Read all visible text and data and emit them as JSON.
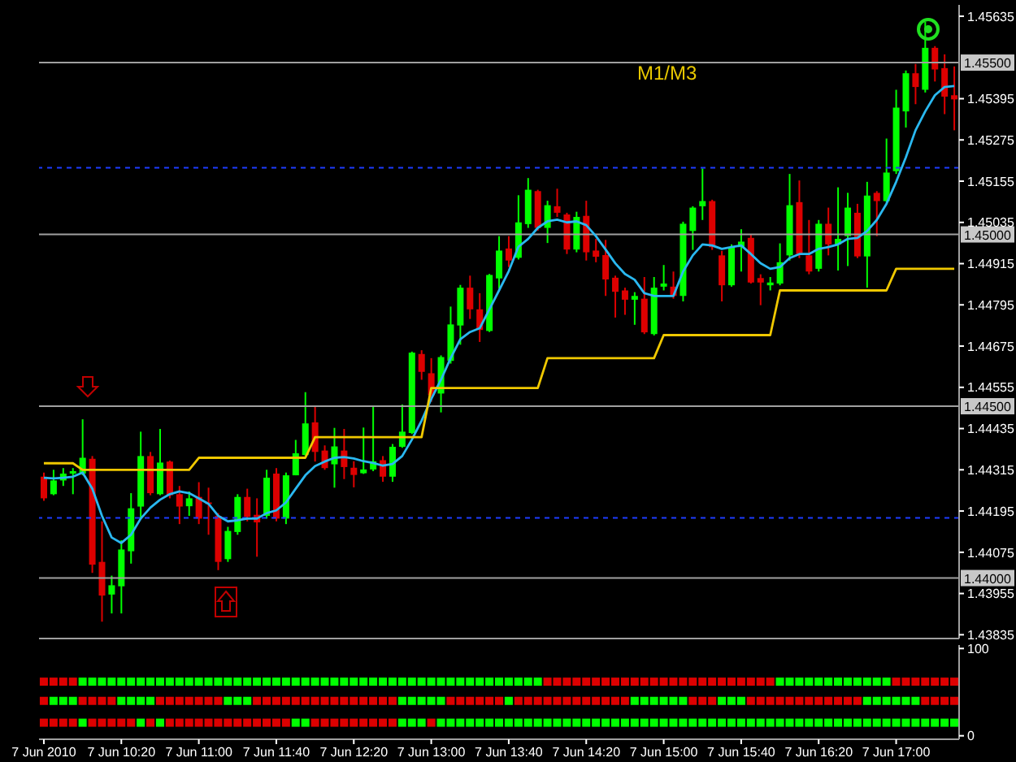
{
  "chart_data": [
    {
      "type": "candlestick",
      "tick_labels": "y",
      "annotations": [
        "M1/M3"
      ],
      "ylim": [
        1.43824,
        1.45668
      ],
      "yticks": [
        1.43835,
        1.43955,
        1.44075,
        1.44195,
        1.44315,
        1.44435,
        1.44555,
        1.44675,
        1.44795,
        1.44915,
        1.45035,
        1.45155,
        1.45275,
        1.45395,
        1.45635
      ],
      "ref_lines": [
        {
          "axis": "y",
          "value": 1.455,
          "label": "1.45500",
          "color": "#a0a0a0"
        },
        {
          "axis": "y",
          "value": 1.45,
          "label": "1.45000",
          "color": "#a0a0a0"
        },
        {
          "axis": "y",
          "value": 1.445,
          "label": "1.44500",
          "color": "#a0a0a0"
        },
        {
          "axis": "y",
          "value": 1.44,
          "label": "1.44000",
          "color": "#a0a0a0"
        },
        {
          "axis": "y",
          "value": 1.45194,
          "color": "#1e3cff",
          "line_style": "dashed"
        },
        {
          "axis": "y",
          "value": 1.44175,
          "color": "#1e3cff",
          "line_style": "dashed"
        }
      ],
      "ohlc": [
        [
          1.44295,
          1.44307,
          1.44225,
          1.44232
        ],
        [
          1.44244,
          1.44315,
          1.44241,
          1.44284
        ],
        [
          1.44284,
          1.4432,
          1.44268,
          1.44304
        ],
        [
          1.44304,
          1.4432,
          1.44244,
          1.44311
        ],
        [
          1.44304,
          1.44462,
          1.44299,
          1.4435
        ],
        [
          1.44347,
          1.44355,
          1.44015,
          1.44039
        ],
        [
          1.44047,
          1.44165,
          1.43873,
          1.43949
        ],
        [
          1.43952,
          1.44007,
          1.43897,
          1.43979
        ],
        [
          1.43976,
          1.4411,
          1.43897,
          1.44083
        ],
        [
          1.44078,
          1.44247,
          1.44042,
          1.44203
        ],
        [
          1.44208,
          1.44426,
          1.44173,
          1.44355
        ],
        [
          1.44355,
          1.44367,
          1.44241,
          1.44247
        ],
        [
          1.44244,
          1.44434,
          1.44241,
          1.44336
        ],
        [
          1.44339,
          1.44342,
          1.44232,
          1.44241
        ],
        [
          1.44244,
          1.44268,
          1.44157,
          1.44208
        ],
        [
          1.44209,
          1.44252,
          1.44181,
          1.44232
        ],
        [
          1.44236,
          1.44279,
          1.44157,
          1.44173
        ],
        [
          1.4422,
          1.44263,
          1.44126,
          1.44216
        ],
        [
          1.44181,
          1.44189,
          1.44023,
          1.44047
        ],
        [
          1.44055,
          1.44149,
          1.44047,
          1.44137
        ],
        [
          1.44134,
          1.44244,
          1.44126,
          1.44236
        ],
        [
          1.44236,
          1.4426,
          1.44165,
          1.44178
        ],
        [
          1.44184,
          1.44232,
          1.44062,
          1.44162
        ],
        [
          1.44181,
          1.44315,
          1.44173,
          1.44292
        ],
        [
          1.44304,
          1.4432,
          1.44165,
          1.44173
        ],
        [
          1.44173,
          1.44307,
          1.44157,
          1.44299
        ],
        [
          1.44299,
          1.44402,
          1.44299,
          1.44363
        ],
        [
          1.44358,
          1.44541,
          1.44355,
          1.4445
        ],
        [
          1.44453,
          1.445,
          1.44339,
          1.44367
        ],
        [
          1.44371,
          1.44386,
          1.44315,
          1.4432
        ],
        [
          1.44331,
          1.44437,
          1.44263,
          1.44383
        ],
        [
          1.44371,
          1.44434,
          1.44288,
          1.44323
        ],
        [
          1.44321,
          1.4434,
          1.44264,
          1.443
        ],
        [
          1.44305,
          1.44438,
          1.44303,
          1.44316
        ],
        [
          1.44316,
          1.44498,
          1.44311,
          1.4434
        ],
        [
          1.44343,
          1.44355,
          1.4428,
          1.44295
        ],
        [
          1.44295,
          1.4439,
          1.4428,
          1.44382
        ],
        [
          1.44382,
          1.44505,
          1.44379,
          1.44426
        ],
        [
          1.44422,
          1.44659,
          1.44419,
          1.44656
        ],
        [
          1.44652,
          1.44663,
          1.44577,
          1.446
        ],
        [
          1.44596,
          1.4464,
          1.44513,
          1.44532
        ],
        [
          1.44537,
          1.44648,
          1.44482,
          1.44643
        ],
        [
          1.44632,
          1.4479,
          1.44624,
          1.44738
        ],
        [
          1.44735,
          1.44853,
          1.44679,
          1.44845
        ],
        [
          1.44845,
          1.4488,
          1.44754,
          1.44782
        ],
        [
          1.44782,
          1.44829,
          1.44687,
          1.44722
        ],
        [
          1.44719,
          1.44885,
          1.44716,
          1.44882
        ],
        [
          1.44872,
          1.44995,
          1.44842,
          1.44953
        ],
        [
          1.44959,
          1.44995,
          1.44905,
          1.44924
        ],
        [
          1.44932,
          1.45114,
          1.44927,
          1.45035
        ],
        [
          1.4503,
          1.45164,
          1.45019,
          1.4513
        ],
        [
          1.45126,
          1.4513,
          1.45011,
          1.45019
        ],
        [
          1.45019,
          1.45098,
          1.44975,
          1.45085
        ],
        [
          1.45082,
          1.45133,
          1.45051,
          1.45063
        ],
        [
          1.45058,
          1.45063,
          1.44943,
          1.44956
        ],
        [
          1.44956,
          1.45066,
          1.44948,
          1.45051
        ],
        [
          1.45054,
          1.45098,
          1.44924,
          1.44948
        ],
        [
          1.44953,
          1.44987,
          1.44919,
          1.44935
        ],
        [
          1.4494,
          1.44984,
          1.44821,
          1.44869
        ],
        [
          1.44874,
          1.4488,
          1.44758,
          1.44833
        ],
        [
          1.44837,
          1.44845,
          1.44766,
          1.4481
        ],
        [
          1.4481,
          1.44832,
          1.44737,
          1.44821
        ],
        [
          1.44813,
          1.44876,
          1.4471,
          1.44715
        ],
        [
          1.4471,
          1.44876,
          1.44706,
          1.44845
        ],
        [
          1.44848,
          1.44911,
          1.44837,
          1.44857
        ],
        [
          1.44848,
          1.44892,
          1.44813,
          1.44821
        ],
        [
          1.44821,
          1.45037,
          1.44805,
          1.45031
        ],
        [
          1.4501,
          1.45082,
          1.44955,
          1.45078
        ],
        [
          1.45082,
          1.45192,
          1.45042,
          1.45097
        ],
        [
          1.45097,
          1.45101,
          1.44955,
          1.44963
        ],
        [
          1.44939,
          1.44952,
          1.44805,
          1.44852
        ],
        [
          1.44852,
          1.44971,
          1.44848,
          1.44963
        ],
        [
          1.44963,
          1.45015,
          1.44892,
          1.44979
        ],
        [
          1.4499,
          1.44999,
          1.44857,
          1.4486
        ],
        [
          1.44873,
          1.44884,
          1.44794,
          1.4486
        ],
        [
          1.44852,
          1.44876,
          1.44837,
          1.4486
        ],
        [
          1.44857,
          1.44974,
          1.44852,
          1.44919
        ],
        [
          1.44939,
          1.45176,
          1.44924,
          1.45085
        ],
        [
          1.45094,
          1.45157,
          1.44931,
          1.44943
        ],
        [
          1.44939,
          1.45042,
          1.44884,
          1.44892
        ],
        [
          1.449,
          1.45042,
          1.44892,
          1.45031
        ],
        [
          1.45031,
          1.45078,
          1.44939,
          1.44971
        ],
        [
          1.44971,
          1.45137,
          1.44895,
          1.44987
        ],
        [
          1.44995,
          1.45121,
          1.44908,
          1.45078
        ],
        [
          1.45063,
          1.45089,
          1.44931,
          1.44936
        ],
        [
          1.44936,
          1.45153,
          1.44845,
          1.45113
        ],
        [
          1.45121,
          1.45126,
          1.44995,
          1.45097
        ],
        [
          1.45097,
          1.45279,
          1.45094,
          1.4518
        ],
        [
          1.45184,
          1.45421,
          1.45176,
          1.45369
        ],
        [
          1.45358,
          1.45477,
          1.45311,
          1.45469
        ],
        [
          1.45469,
          1.45496,
          1.45379,
          1.45429
        ],
        [
          1.45421,
          1.45619,
          1.45413,
          1.45543
        ],
        [
          1.45543,
          1.45548,
          1.45445,
          1.4548
        ],
        [
          1.45484,
          1.45524,
          1.4535,
          1.45401
        ],
        [
          1.45405,
          1.45489,
          1.45303,
          1.45393
        ]
      ],
      "colors": [
        "#dd0000",
        "#00ff00",
        "#00ff00",
        "#00ff00",
        "#00ff00",
        "#dd0000",
        "#dd0000",
        "#00ff00",
        "#00ff00",
        "#00ff00",
        "#00ff00",
        "#dd0000",
        "#00ff00",
        "#dd0000",
        "#dd0000",
        "#00ff00",
        "#dd0000",
        "#dd0000",
        "#dd0000",
        "#00ff00",
        "#00ff00",
        "#dd0000",
        "#dd0000",
        "#00ff00",
        "#dd0000",
        "#00ff00",
        "#00ff00",
        "#00ff00",
        "#dd0000",
        "#dd0000",
        "#00ff00",
        "#dd0000",
        "#dd0000",
        "#00ff00",
        "#00ff00",
        "#dd0000",
        "#00ff00",
        "#00ff00",
        "#00ff00",
        "#dd0000",
        "#dd0000",
        "#00ff00",
        "#00ff00",
        "#00ff00",
        "#dd0000",
        "#dd0000",
        "#00ff00",
        "#00ff00",
        "#dd0000",
        "#00ff00",
        "#00ff00",
        "#dd0000",
        "#00ff00",
        "#dd0000",
        "#dd0000",
        "#00ff00",
        "#dd0000",
        "#dd0000",
        "#dd0000",
        "#dd0000",
        "#dd0000",
        "#00ff00",
        "#dd0000",
        "#00ff00",
        "#00ff00",
        "#dd0000",
        "#00ff00",
        "#00ff00",
        "#00ff00",
        "#dd0000",
        "#dd0000",
        "#00ff00",
        "#00ff00",
        "#dd0000",
        "#dd0000",
        "#00ff00",
        "#00ff00",
        "#00ff00",
        "#dd0000",
        "#dd0000",
        "#00ff00",
        "#dd0000",
        "#00ff00",
        "#00ff00",
        "#dd0000",
        "#00ff00",
        "#dd0000",
        "#00ff00",
        "#00ff00",
        "#00ff00",
        "#dd0000",
        "#00ff00",
        "#dd0000",
        "#dd0000",
        "#dd0000"
      ],
      "series": [
        {
          "type": "line",
          "color": "#2ab8f0",
          "values": [
            1.44292,
            1.4429,
            1.44292,
            1.44295,
            1.44307,
            1.4426,
            1.44181,
            1.44118,
            1.44102,
            1.44126,
            1.44173,
            1.44205,
            1.44228,
            1.44244,
            1.44252,
            1.44247,
            1.44232,
            1.44216,
            1.44181,
            1.44165,
            1.44168,
            1.44173,
            1.44173,
            1.44189,
            1.44197,
            1.4422,
            1.4426,
            1.44299,
            1.44326,
            1.44339,
            1.4435,
            1.44352,
            1.44348,
            1.4434,
            1.44335,
            1.44327,
            1.44332,
            1.44355,
            1.44403,
            1.44458,
            1.44521,
            1.44577,
            1.4464,
            1.44695,
            1.44716,
            1.44727,
            1.44782,
            1.44837,
            1.44893,
            1.44964,
            1.44987,
            1.45019,
            1.45038,
            1.45043,
            1.45035,
            1.45038,
            1.45027,
            1.44995,
            1.44956,
            1.44916,
            1.44885,
            1.44868,
            1.44829,
            1.44821,
            1.44821,
            1.44821,
            1.44892,
            1.44939,
            1.44971,
            1.44968,
            1.44958,
            1.44963,
            1.44968,
            1.44943,
            1.44916,
            1.449,
            1.44905,
            1.44931,
            1.44943,
            1.44943,
            1.44958,
            1.44963,
            1.44971,
            1.44987,
            1.4499,
            1.4501,
            1.45042,
            1.45089,
            1.45153,
            1.45224,
            1.45303,
            1.45358,
            1.45405,
            1.45429,
            1.45432
          ]
        },
        {
          "type": "line",
          "color": "#f0c800",
          "values": [
            1.44334,
            1.44334,
            1.44334,
            1.44334,
            1.44315,
            1.44315,
            1.44315,
            1.44315,
            1.44315,
            1.44315,
            1.44315,
            1.44315,
            1.44315,
            1.44315,
            1.44315,
            1.44315,
            1.4435,
            1.4435,
            1.4435,
            1.4435,
            1.4435,
            1.4435,
            1.4435,
            1.4435,
            1.4435,
            1.4435,
            1.4435,
            1.4435,
            1.4441,
            1.4441,
            1.4441,
            1.4441,
            1.4441,
            1.4441,
            1.4441,
            1.4441,
            1.4441,
            1.4441,
            1.4441,
            1.4441,
            1.44553,
            1.44553,
            1.44553,
            1.44553,
            1.44553,
            1.44553,
            1.44553,
            1.44553,
            1.44553,
            1.44553,
            1.44553,
            1.44553,
            1.4464,
            1.4464,
            1.4464,
            1.4464,
            1.4464,
            1.4464,
            1.4464,
            1.4464,
            1.4464,
            1.4464,
            1.4464,
            1.4464,
            1.44707,
            1.44707,
            1.44707,
            1.44707,
            1.44707,
            1.44707,
            1.44707,
            1.44707,
            1.44707,
            1.44707,
            1.44707,
            1.44707,
            1.44837,
            1.44837,
            1.44837,
            1.44837,
            1.44837,
            1.44837,
            1.44837,
            1.44837,
            1.44837,
            1.44837,
            1.44837,
            1.44837,
            1.449,
            1.449,
            1.449,
            1.449,
            1.449,
            1.449,
            1.449
          ]
        }
      ]
    },
    {
      "type": "scatter",
      "marker": "square",
      "categories": [
        "7 Jun 2010",
        null,
        null,
        null,
        null,
        null,
        null,
        null,
        "7 Jun 10:20",
        null,
        null,
        null,
        null,
        null,
        null,
        null,
        "7 Jun 11:00",
        null,
        null,
        null,
        null,
        null,
        null,
        null,
        "7 Jun 11:40",
        null,
        null,
        null,
        null,
        null,
        null,
        null,
        "7 Jun 12:20",
        null,
        null,
        null,
        null,
        null,
        null,
        null,
        "7 Jun 13:00",
        null,
        null,
        null,
        null,
        null,
        null,
        null,
        "7 Jun 13:40",
        null,
        null,
        null,
        null,
        null,
        null,
        null,
        "7 Jun 14:20",
        null,
        null,
        null,
        null,
        null,
        null,
        null,
        "7 Jun 15:00",
        null,
        null,
        null,
        null,
        null,
        null,
        null,
        "7 Jun 15:40",
        null,
        null,
        null,
        null,
        null,
        null,
        null,
        "7 Jun 16:20",
        null,
        null,
        null,
        null,
        null,
        null,
        null,
        "7 Jun 17:00",
        null,
        null,
        null,
        null,
        null,
        null
      ],
      "ylim": [
        -4,
        104
      ],
      "yticks": [
        0,
        100
      ],
      "series": [
        {
          "color": "#dd0000",
          "values": [
            62,
            62,
            62,
            62,
            null,
            null,
            null,
            null,
            null,
            null,
            null,
            null,
            null,
            null,
            null,
            null,
            null,
            null,
            null,
            null,
            null,
            null,
            null,
            null,
            null,
            null,
            null,
            null,
            null,
            null,
            null,
            null,
            null,
            null,
            null,
            null,
            null,
            null,
            null,
            null,
            null,
            null,
            null,
            null,
            null,
            null,
            null,
            null,
            null,
            null,
            null,
            null,
            62,
            62,
            62,
            62,
            62,
            62,
            62,
            62,
            62,
            62,
            62,
            62,
            62,
            62,
            62,
            62,
            62,
            62,
            62,
            62,
            62,
            62,
            62,
            62,
            null,
            null,
            null,
            null,
            null,
            null,
            null,
            null,
            null,
            null,
            null,
            null,
            62,
            62,
            62,
            62,
            62,
            62,
            62
          ]
        },
        {
          "color": "#00ff00",
          "values": [
            null,
            null,
            null,
            null,
            62,
            62,
            62,
            62,
            62,
            62,
            62,
            62,
            62,
            62,
            62,
            62,
            62,
            62,
            62,
            62,
            62,
            62,
            62,
            62,
            62,
            62,
            62,
            62,
            62,
            62,
            62,
            62,
            62,
            62,
            62,
            62,
            62,
            62,
            62,
            62,
            62,
            62,
            62,
            62,
            62,
            62,
            62,
            62,
            62,
            62,
            62,
            62,
            null,
            null,
            null,
            null,
            null,
            null,
            null,
            null,
            null,
            null,
            null,
            null,
            null,
            null,
            null,
            null,
            null,
            null,
            null,
            null,
            null,
            null,
            null,
            null,
            62,
            62,
            62,
            62,
            62,
            62,
            62,
            62,
            62,
            62,
            62,
            62,
            null,
            null,
            null,
            null,
            null,
            null,
            null
          ]
        },
        {
          "color": "#dd0000",
          "values": [
            40,
            null,
            null,
            null,
            40,
            40,
            40,
            40,
            null,
            null,
            null,
            null,
            40,
            40,
            40,
            40,
            40,
            40,
            40,
            null,
            null,
            null,
            40,
            40,
            40,
            40,
            40,
            40,
            40,
            40,
            40,
            40,
            40,
            40,
            40,
            40,
            40,
            null,
            null,
            null,
            null,
            null,
            40,
            40,
            40,
            40,
            40,
            40,
            null,
            40,
            40,
            40,
            40,
            40,
            40,
            40,
            40,
            40,
            40,
            40,
            40,
            null,
            null,
            null,
            null,
            null,
            null,
            40,
            40,
            40,
            null,
            null,
            null,
            40,
            40,
            40,
            40,
            40,
            40,
            40,
            40,
            40,
            40,
            40,
            40,
            null,
            null,
            null,
            null,
            null,
            null,
            40,
            40,
            40,
            40
          ]
        },
        {
          "color": "#00ff00",
          "values": [
            null,
            40,
            40,
            40,
            null,
            null,
            null,
            null,
            40,
            40,
            40,
            40,
            null,
            null,
            null,
            null,
            null,
            null,
            null,
            40,
            40,
            40,
            null,
            null,
            null,
            null,
            null,
            null,
            null,
            null,
            null,
            null,
            null,
            null,
            null,
            null,
            null,
            40,
            40,
            40,
            40,
            40,
            null,
            null,
            null,
            null,
            null,
            null,
            40,
            null,
            null,
            null,
            null,
            null,
            null,
            null,
            null,
            null,
            null,
            null,
            null,
            40,
            40,
            40,
            40,
            40,
            40,
            null,
            null,
            null,
            40,
            40,
            40,
            null,
            null,
            null,
            null,
            null,
            null,
            null,
            null,
            null,
            null,
            null,
            null,
            40,
            40,
            40,
            40,
            40,
            40,
            null,
            null,
            null,
            null
          ]
        },
        {
          "color": "#dd0000",
          "values": [
            15,
            15,
            15,
            15,
            null,
            15,
            15,
            15,
            15,
            15,
            null,
            15,
            null,
            15,
            15,
            15,
            15,
            15,
            15,
            15,
            15,
            15,
            15,
            15,
            15,
            15,
            null,
            null,
            15,
            15,
            15,
            15,
            15,
            15,
            15,
            15,
            15,
            null,
            null,
            null,
            15,
            null,
            null,
            null,
            null,
            null,
            null,
            null,
            null,
            null,
            null,
            null,
            null,
            null,
            null,
            null,
            null,
            null,
            null,
            null,
            null,
            null,
            null,
            null,
            null,
            null,
            null,
            null,
            null,
            null,
            null,
            null,
            null,
            null,
            null,
            null,
            null,
            null,
            null,
            null,
            null,
            null,
            null,
            null,
            null,
            null,
            null,
            null,
            null,
            null,
            null,
            null,
            null,
            null,
            null
          ]
        },
        {
          "color": "#00ff00",
          "values": [
            null,
            null,
            null,
            null,
            15,
            null,
            null,
            null,
            null,
            null,
            15,
            null,
            15,
            null,
            null,
            null,
            null,
            null,
            null,
            null,
            null,
            null,
            null,
            null,
            null,
            null,
            15,
            15,
            null,
            null,
            null,
            null,
            null,
            null,
            null,
            null,
            null,
            15,
            15,
            15,
            null,
            15,
            15,
            15,
            15,
            15,
            15,
            15,
            15,
            15,
            15,
            15,
            15,
            15,
            15,
            15,
            15,
            15,
            15,
            15,
            15,
            15,
            15,
            15,
            15,
            15,
            15,
            15,
            15,
            15,
            15,
            15,
            15,
            15,
            15,
            15,
            15,
            15,
            15,
            15,
            15,
            15,
            15,
            15,
            15,
            15,
            15,
            15,
            15,
            15,
            15,
            15,
            15,
            15,
            15
          ]
        }
      ]
    }
  ]
}
